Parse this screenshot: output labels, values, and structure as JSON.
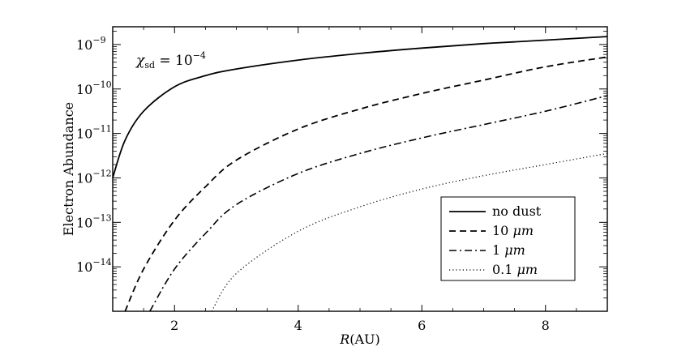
{
  "chart_data": {
    "type": "line",
    "xlabel": "R(AU)",
    "ylabel": "Electron Abundance",
    "xlim": [
      1,
      9
    ],
    "ylim_log10": [
      -15,
      -8.6
    ],
    "yscale": "log",
    "x_ticks": [
      2,
      4,
      6,
      8
    ],
    "y_ticks": [
      {
        "label": "10",
        "exp": "−9",
        "log10": -9
      },
      {
        "label": "10",
        "exp": "−10",
        "log10": -10
      },
      {
        "label": "10",
        "exp": "−11",
        "log10": -11
      },
      {
        "label": "10",
        "exp": "−12",
        "log10": -12
      },
      {
        "label": "10",
        "exp": "−13",
        "log10": -13
      },
      {
        "label": "10",
        "exp": "−14",
        "log10": -14
      }
    ],
    "annotation": {
      "lhs": "χ",
      "sub": "sd",
      "rhs": " = 10",
      "exp": "−4"
    },
    "legend_position": "lower-right",
    "series": [
      {
        "name": "no dust",
        "style": "solid",
        "x": [
          1.0,
          1.2,
          1.5,
          2.0,
          2.5,
          3.0,
          4.0,
          5.0,
          6.0,
          7.0,
          8.0,
          9.0
        ],
        "y_log10": [
          -12.0,
          -11.15,
          -10.5,
          -9.95,
          -9.7,
          -9.55,
          -9.35,
          -9.2,
          -9.08,
          -8.98,
          -8.9,
          -8.82
        ]
      },
      {
        "name": "10 μm",
        "style": "dashed",
        "x": [
          1.2,
          1.5,
          2.0,
          2.5,
          3.0,
          4.0,
          5.0,
          6.0,
          7.0,
          8.0,
          9.0
        ],
        "y_log10": [
          -15.0,
          -14.05,
          -12.95,
          -12.2,
          -11.6,
          -10.9,
          -10.45,
          -10.1,
          -9.8,
          -9.5,
          -9.28
        ]
      },
      {
        "name": "1 μm",
        "style": "dashdot",
        "x": [
          1.6,
          2.0,
          2.5,
          3.0,
          4.0,
          5.0,
          6.0,
          7.0,
          8.0,
          9.0
        ],
        "y_log10": [
          -15.0,
          -14.05,
          -13.25,
          -12.6,
          -11.9,
          -11.45,
          -11.1,
          -10.8,
          -10.5,
          -10.15
        ]
      },
      {
        "name": "0.1 μm",
        "style": "dotted",
        "x": [
          2.6,
          3.0,
          4.0,
          5.0,
          6.0,
          7.0,
          8.0,
          9.0
        ],
        "y_log10": [
          -15.0,
          -14.15,
          -13.2,
          -12.65,
          -12.25,
          -11.95,
          -11.7,
          -11.45
        ]
      }
    ]
  }
}
